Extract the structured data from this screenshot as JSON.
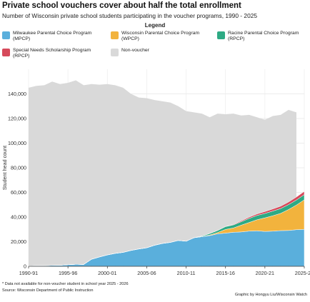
{
  "header": {
    "title": "Private school vouchers cover about half the total enrollment",
    "subtitle": "Number of Wisconsin private school students participating in the voucher programs, 1990 - 2025"
  },
  "legend": {
    "title": "Legend",
    "items": [
      {
        "label": "Milwaukee Parental Choice Program\n(MPCP)",
        "color": "#5aafdc"
      },
      {
        "label": "Wisconsin Parental Choice Program\n(WPCP)",
        "color": "#f2b33d"
      },
      {
        "label": "Racine Parental Choice Program\n(RPCP)",
        "color": "#2eaa84"
      },
      {
        "label": "Special Needs Scholarship Program\n(RPCP)",
        "color": "#d64a5b"
      },
      {
        "label": "Non-voucher",
        "color": "#d9d9d9"
      }
    ]
  },
  "footer": {
    "note": "*  Data not available for non-voucher student in school year 2025 - 2026",
    "source": "Source: Wisconsin Department of Public Instruction",
    "credit": "Graphic by Hongyu Liu/Wisconsin Watch"
  },
  "chart_data": {
    "type": "area",
    "stacked": true,
    "ylabel": "Student head count",
    "xlabel": "",
    "ylim": [
      0,
      160000
    ],
    "yticks": [
      0,
      20000,
      40000,
      60000,
      80000,
      100000,
      120000,
      140000
    ],
    "ytick_labels": [
      "0",
      "20,000",
      "40,000",
      "60,000",
      "80,000",
      "100,000",
      "120,000",
      "140,000"
    ],
    "x_tick_labels": [
      "1990-91",
      "1995-96",
      "2000-01",
      "2005-06",
      "2010-11",
      "2015-16",
      "2020-21",
      "2025-26"
    ],
    "x_tick_index": [
      0,
      5,
      10,
      15,
      20,
      25,
      30,
      35
    ],
    "grid": true,
    "x": [
      "1990-91",
      "1991-92",
      "1992-93",
      "1993-94",
      "1994-95",
      "1995-96",
      "1996-97",
      "1997-98",
      "1998-99",
      "1999-00",
      "2000-01",
      "2001-02",
      "2002-03",
      "2003-04",
      "2004-05",
      "2005-06",
      "2006-07",
      "2007-08",
      "2008-09",
      "2009-10",
      "2010-11",
      "2011-12",
      "2012-13",
      "2013-14",
      "2014-15",
      "2015-16",
      "2016-17",
      "2017-18",
      "2018-19",
      "2019-20",
      "2020-21",
      "2021-22",
      "2022-23",
      "2023-24",
      "2024-25",
      "2025-26"
    ],
    "total_enrollment": [
      145000,
      146500,
      147000,
      150000,
      148000,
      149000,
      151000,
      147000,
      148000,
      147500,
      148000,
      147000,
      145000,
      140000,
      137000,
      136500,
      135000,
      134000,
      133000,
      130000,
      126000,
      125000,
      124000,
      121000,
      124000,
      123500,
      124000,
      122500,
      123000,
      121000,
      119000,
      122000,
      123000,
      127000,
      125000,
      null
    ],
    "series": [
      {
        "name": "Milwaukee Parental Choice Program\n(MPCP)",
        "values": [
          341,
          558,
          613,
          742,
          830,
          1288,
          1616,
          1501,
          5740,
          7575,
          9238,
          10497,
          11304,
          12882,
          14071,
          15035,
          17088,
          18558,
          19414,
          20996,
          20372,
          23198,
          24027,
          24915,
          26397,
          26930,
          27618,
          27904,
          28582,
          28789,
          28326,
          28535,
          28978,
          29089,
          29730,
          30000
        ]
      },
      {
        "name": "Wisconsin Parental Choice Program\n(WPCP)",
        "values": [
          0,
          0,
          0,
          0,
          0,
          0,
          0,
          0,
          0,
          0,
          0,
          0,
          0,
          0,
          0,
          0,
          0,
          0,
          0,
          0,
          0,
          0,
          0,
          500,
          1000,
          3000,
          3500,
          5500,
          7000,
          9000,
          11000,
          12500,
          14000,
          17000,
          20000,
          24000
        ]
      },
      {
        "name": "Racine Parental Choice Program\n(RPCP)",
        "values": [
          0,
          0,
          0,
          0,
          0,
          0,
          0,
          0,
          0,
          0,
          0,
          0,
          0,
          0,
          0,
          0,
          0,
          0,
          0,
          0,
          0,
          0,
          500,
          1200,
          1700,
          2300,
          2500,
          2800,
          3300,
          3500,
          3600,
          3800,
          3900,
          4000,
          4100,
          4200
        ]
      },
      {
        "name": "Special Needs Scholarship Program\n(RPCP)",
        "values": [
          0,
          0,
          0,
          0,
          0,
          0,
          0,
          0,
          0,
          0,
          0,
          0,
          0,
          0,
          0,
          0,
          0,
          0,
          0,
          0,
          0,
          0,
          0,
          0,
          0,
          200,
          400,
          700,
          1000,
          1200,
          1500,
          1700,
          1900,
          2100,
          2400,
          2600
        ]
      }
    ]
  }
}
